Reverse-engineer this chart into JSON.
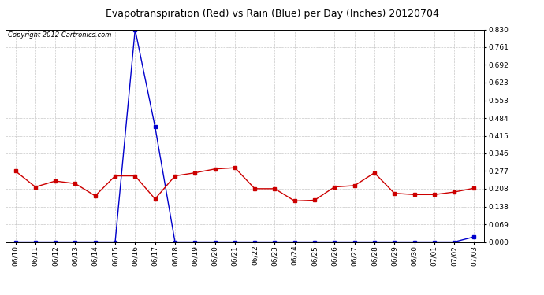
{
  "title": "Evapotranspiration (Red) vs Rain (Blue) per Day (Inches) 20120704",
  "copyright": "Copyright 2012 Cartronics.com",
  "dates": [
    "06/10",
    "06/11",
    "06/12",
    "06/13",
    "06/14",
    "06/15",
    "06/16",
    "06/17",
    "06/18",
    "06/19",
    "06/20",
    "06/21",
    "06/22",
    "06/23",
    "06/24",
    "06/25",
    "06/26",
    "06/27",
    "06/28",
    "06/29",
    "06/30",
    "07/01",
    "07/02",
    "07/03"
  ],
  "et_red": [
    0.277,
    0.215,
    0.238,
    0.228,
    0.18,
    0.258,
    0.258,
    0.168,
    0.258,
    0.27,
    0.285,
    0.29,
    0.208,
    0.208,
    0.16,
    0.163,
    0.215,
    0.22,
    0.27,
    0.19,
    0.185,
    0.185,
    0.195,
    0.21
  ],
  "rain_blue": [
    0.0,
    0.0,
    0.0,
    0.0,
    0.0,
    0.0,
    0.83,
    0.45,
    0.0,
    0.0,
    0.0,
    0.0,
    0.0,
    0.0,
    0.0,
    0.0,
    0.0,
    0.0,
    0.0,
    0.0,
    0.0,
    0.0,
    0.0,
    0.02
  ],
  "ylim": [
    0.0,
    0.83
  ],
  "yticks": [
    0.0,
    0.069,
    0.138,
    0.208,
    0.277,
    0.346,
    0.415,
    0.484,
    0.553,
    0.623,
    0.692,
    0.761,
    0.83
  ],
  "bg_color": "#ffffff",
  "grid_color": "#c8c8c8",
  "red_color": "#cc0000",
  "blue_color": "#0000cc",
  "title_fontsize": 9,
  "copyright_fontsize": 6,
  "tick_fontsize": 6.5,
  "marker_size": 2.5,
  "line_width": 1.0
}
